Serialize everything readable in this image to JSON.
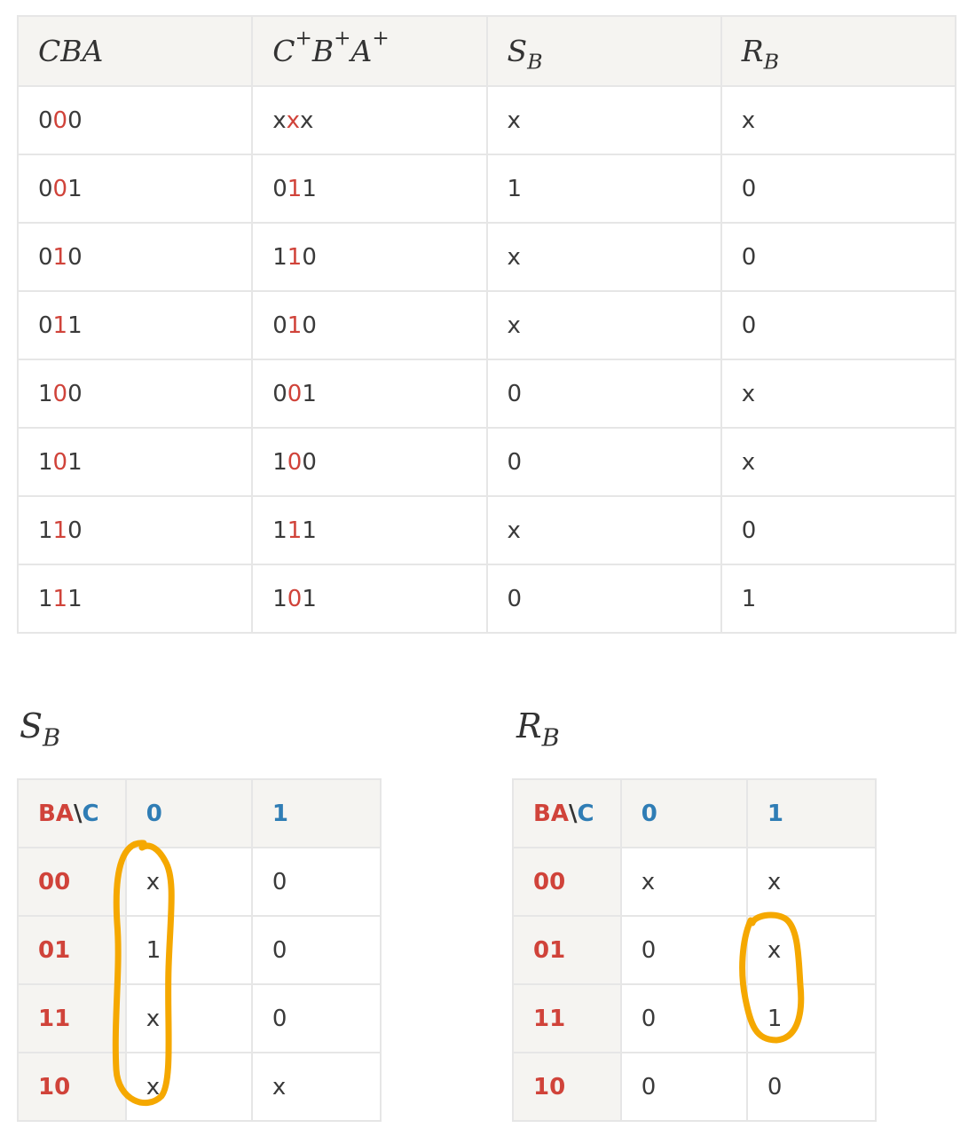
{
  "truth_table": {
    "headers": {
      "cba": "CBA",
      "next_c": "C",
      "next_b": "B",
      "next_a": "A",
      "plus": "+",
      "s": "S",
      "r": "R",
      "sub_b": "B"
    },
    "rows": [
      {
        "cba": [
          "0",
          "0",
          "0"
        ],
        "next": [
          "x",
          "x",
          "x"
        ],
        "sb": "x",
        "rb": "x"
      },
      {
        "cba": [
          "0",
          "0",
          "1"
        ],
        "next": [
          "0",
          "1",
          "1"
        ],
        "sb": "1",
        "rb": "0"
      },
      {
        "cba": [
          "0",
          "1",
          "0"
        ],
        "next": [
          "1",
          "1",
          "0"
        ],
        "sb": "x",
        "rb": "0"
      },
      {
        "cba": [
          "0",
          "1",
          "1"
        ],
        "next": [
          "0",
          "1",
          "0"
        ],
        "sb": "x",
        "rb": "0"
      },
      {
        "cba": [
          "1",
          "0",
          "0"
        ],
        "next": [
          "0",
          "0",
          "1"
        ],
        "sb": "0",
        "rb": "x"
      },
      {
        "cba": [
          "1",
          "0",
          "1"
        ],
        "next": [
          "1",
          "0",
          "0"
        ],
        "sb": "0",
        "rb": "x"
      },
      {
        "cba": [
          "1",
          "1",
          "0"
        ],
        "next": [
          "1",
          "1",
          "1"
        ],
        "sb": "x",
        "rb": "0"
      },
      {
        "cba": [
          "1",
          "1",
          "1"
        ],
        "next": [
          "1",
          "0",
          "1"
        ],
        "sb": "0",
        "rb": "1"
      }
    ]
  },
  "kmap_sb": {
    "title_main": "S",
    "title_sub": "B",
    "corner": {
      "rows": "BA",
      "sep": "\\",
      "cols": "C"
    },
    "col_headers": [
      "0",
      "1"
    ],
    "rows": [
      {
        "label": "00",
        "cells": [
          "x",
          "0"
        ]
      },
      {
        "label": "01",
        "cells": [
          "1",
          "0"
        ]
      },
      {
        "label": "11",
        "cells": [
          "x",
          "0"
        ]
      },
      {
        "label": "10",
        "cells": [
          "x",
          "x"
        ]
      }
    ]
  },
  "kmap_rb": {
    "title_main": "R",
    "title_sub": "B",
    "corner": {
      "rows": "BA",
      "sep": "\\",
      "cols": "C"
    },
    "col_headers": [
      "0",
      "1"
    ],
    "rows": [
      {
        "label": "00",
        "cells": [
          "x",
          "x"
        ]
      },
      {
        "label": "01",
        "cells": [
          "0",
          "x"
        ]
      },
      {
        "label": "11",
        "cells": [
          "0",
          "1"
        ]
      },
      {
        "label": "10",
        "cells": [
          "0",
          "0"
        ]
      }
    ]
  },
  "colors": {
    "highlight": "#d0433a",
    "column_header": "#2f7db5",
    "loop": "#f5a800",
    "header_bg": "#f5f4f1",
    "border": "#e6e6e6"
  }
}
